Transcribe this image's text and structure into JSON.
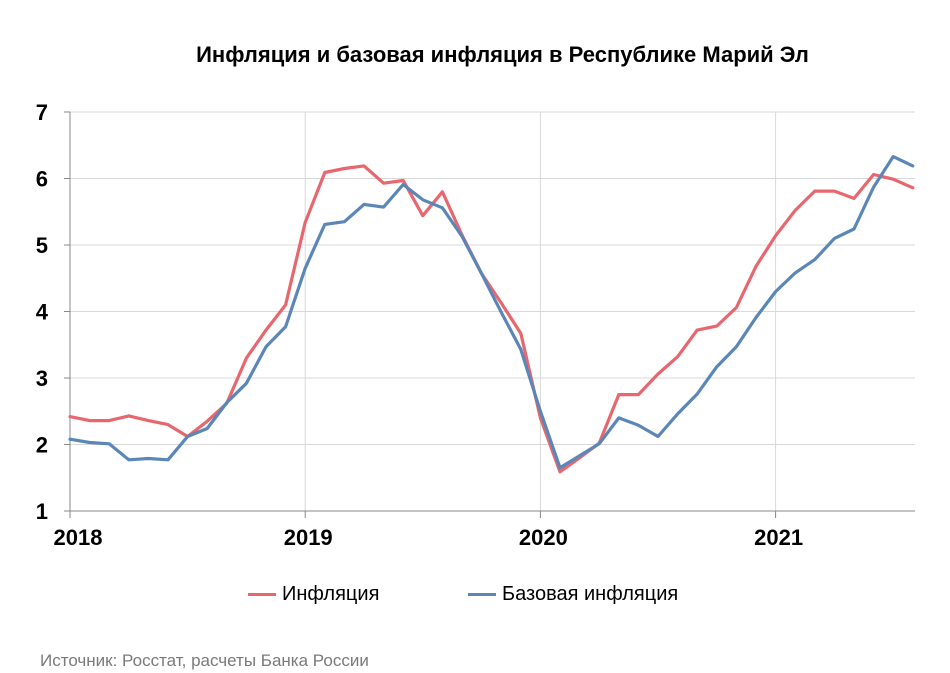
{
  "chart_data": {
    "type": "line",
    "title": "Инфляция и базовая инфляция в Республике Марий Эл",
    "xlabel": "",
    "ylabel": "",
    "ylim": [
      1,
      7
    ],
    "yticks": [
      "1",
      "2",
      "3",
      "4",
      "5",
      "6",
      "7"
    ],
    "xticks": [
      "2018",
      "2019",
      "2020",
      "2021"
    ],
    "x": [
      "2018-01",
      "2018-02",
      "2018-03",
      "2018-04",
      "2018-05",
      "2018-06",
      "2018-07",
      "2018-08",
      "2018-09",
      "2018-10",
      "2018-11",
      "2018-12",
      "2019-01",
      "2019-02",
      "2019-03",
      "2019-04",
      "2019-05",
      "2019-06",
      "2019-07",
      "2019-08",
      "2019-09",
      "2019-10",
      "2019-11",
      "2019-12",
      "2020-01",
      "2020-02",
      "2020-03",
      "2020-04",
      "2020-05",
      "2020-06",
      "2020-07",
      "2020-08",
      "2020-09",
      "2020-10",
      "2020-11",
      "2020-12",
      "2021-01",
      "2021-02",
      "2021-03",
      "2021-04",
      "2021-05",
      "2021-06",
      "2021-07",
      "2021-08"
    ],
    "grid": true,
    "legend_position": "bottom",
    "series": [
      {
        "name": "Инфляция",
        "color": "#e8676e",
        "values": [
          2.42,
          2.36,
          2.36,
          2.43,
          2.36,
          2.3,
          2.12,
          2.35,
          2.62,
          3.3,
          3.72,
          4.1,
          5.34,
          6.09,
          6.15,
          6.19,
          5.93,
          5.97,
          5.44,
          5.8,
          5.15,
          4.57,
          4.13,
          3.67,
          2.4,
          1.59,
          1.8,
          2.02,
          2.75,
          2.75,
          3.06,
          3.32,
          3.72,
          3.78,
          4.06,
          4.68,
          5.14,
          5.52,
          5.81,
          5.81,
          5.7,
          6.06,
          5.99,
          5.86
        ]
      },
      {
        "name": "Базовая инфляция",
        "color": "#5b86b8",
        "values": [
          2.08,
          2.03,
          2.01,
          1.77,
          1.79,
          1.77,
          2.12,
          2.24,
          2.63,
          2.92,
          3.47,
          3.77,
          4.65,
          5.31,
          5.35,
          5.61,
          5.57,
          5.91,
          5.68,
          5.56,
          5.13,
          4.57,
          3.99,
          3.43,
          2.5,
          1.65,
          1.83,
          2.01,
          2.4,
          2.29,
          2.12,
          2.46,
          2.76,
          3.17,
          3.47,
          3.91,
          4.3,
          4.58,
          4.78,
          5.1,
          5.24,
          5.87,
          6.33,
          6.19
        ]
      }
    ],
    "source": "Источник: Росстат, расчеты Банка России"
  }
}
